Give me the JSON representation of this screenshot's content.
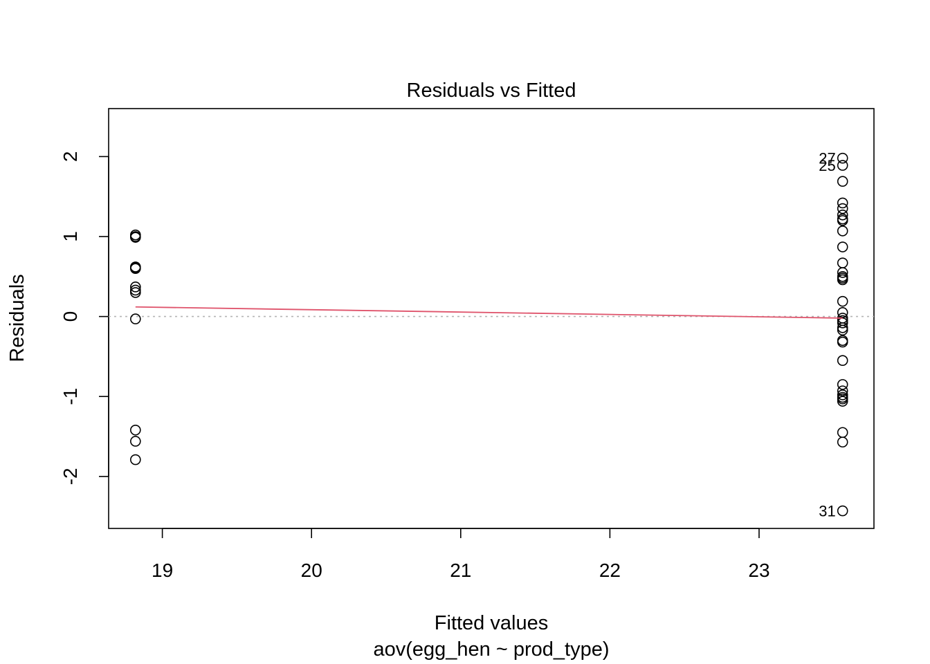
{
  "chart_data": {
    "type": "scatter",
    "title": "Residuals vs Fitted",
    "xlabel": "Fitted values",
    "subtitle": "aov(egg_hen ~ prod_type)",
    "ylabel": "Residuals",
    "xlim": [
      18.64,
      23.77
    ],
    "ylim": [
      -2.65,
      2.6
    ],
    "x_ticks": [
      19,
      20,
      21,
      22,
      23
    ],
    "y_ticks": [
      -2,
      -1,
      0,
      1,
      2
    ],
    "x_tick_labels": [
      "19",
      "20",
      "21",
      "22",
      "23"
    ],
    "y_tick_labels": [
      "-2",
      "-1",
      "0",
      "1",
      "2"
    ],
    "grid": false,
    "reference_line": {
      "y": 0,
      "style": "dotted",
      "color": "#b3b3b3"
    },
    "smooth_line": {
      "color": "#df536b",
      "x": [
        18.82,
        23.56
      ],
      "y": [
        0.12,
        -0.02
      ]
    },
    "series": [
      {
        "x": [
          18.82,
          18.82,
          18.82,
          18.82,
          18.82,
          18.82,
          18.82,
          18.82,
          18.82,
          18.82,
          18.82,
          18.82,
          18.82
        ],
        "y": [
          1.02,
          0.99,
          0.62,
          0.61,
          0.6,
          0.37,
          0.33,
          0.3,
          -0.03,
          -1.42,
          -1.56,
          -1.79,
          1.0
        ]
      },
      {
        "x": [
          23.56,
          23.56,
          23.56,
          23.56,
          23.56,
          23.56,
          23.56,
          23.56,
          23.56,
          23.56,
          23.56,
          23.56,
          23.56,
          23.56,
          23.56,
          23.56,
          23.56,
          23.56,
          23.56,
          23.56,
          23.56,
          23.56,
          23.56,
          23.56,
          23.56,
          23.56,
          23.56,
          23.56,
          23.56,
          23.56,
          23.56,
          23.56,
          23.56,
          23.56
        ],
        "y": [
          1.98,
          1.89,
          1.69,
          1.42,
          1.35,
          1.27,
          1.22,
          1.07,
          0.87,
          0.67,
          0.55,
          0.48,
          0.46,
          0.19,
          0.05,
          -0.02,
          -0.08,
          -0.14,
          -0.17,
          -0.3,
          -0.32,
          -0.55,
          -0.85,
          -0.93,
          -0.98,
          -1.03,
          -1.06,
          -1.45,
          -1.57,
          -2.43,
          0.5,
          -0.05,
          -1.01,
          1.2
        ]
      }
    ],
    "point_labels": [
      {
        "text": "27",
        "x": 23.56,
        "y": 1.98
      },
      {
        "text": "25",
        "x": 23.56,
        "y": 1.89
      },
      {
        "text": "31",
        "x": 23.56,
        "y": -2.43
      }
    ]
  }
}
